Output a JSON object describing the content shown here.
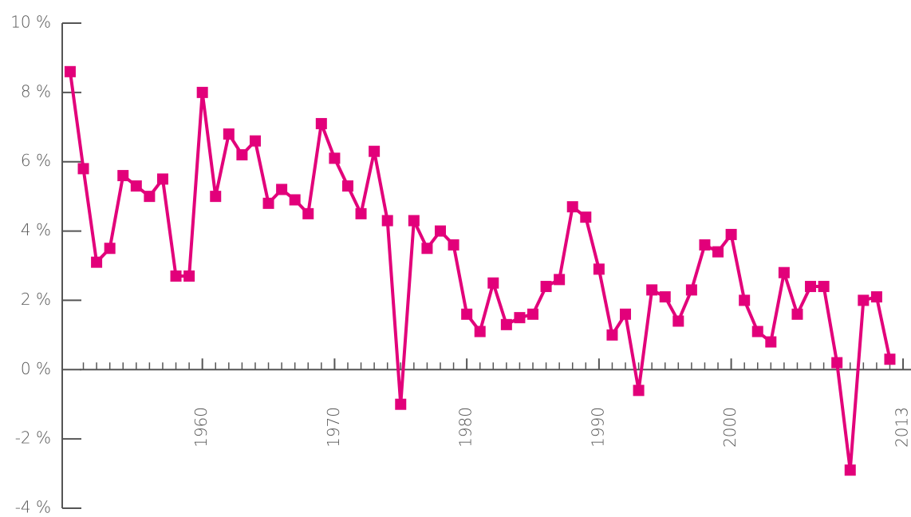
{
  "chart_data": {
    "type": "line",
    "x": [
      1950,
      1951,
      1952,
      1953,
      1954,
      1955,
      1956,
      1957,
      1958,
      1959,
      1960,
      1961,
      1962,
      1963,
      1964,
      1965,
      1966,
      1967,
      1968,
      1969,
      1970,
      1971,
      1972,
      1973,
      1974,
      1975,
      1976,
      1977,
      1978,
      1979,
      1980,
      1981,
      1982,
      1983,
      1984,
      1985,
      1986,
      1987,
      1988,
      1989,
      1990,
      1991,
      1992,
      1993,
      1994,
      1995,
      1996,
      1997,
      1998,
      1999,
      2000,
      2001,
      2002,
      2003,
      2004,
      2005,
      2006,
      2007,
      2008,
      2009,
      2010,
      2011,
      2012
    ],
    "values": [
      8.6,
      5.8,
      3.1,
      3.5,
      5.6,
      5.3,
      5.0,
      5.5,
      2.7,
      2.7,
      8.0,
      5.0,
      6.8,
      6.2,
      6.6,
      4.8,
      5.2,
      4.9,
      4.5,
      7.1,
      6.1,
      5.3,
      4.5,
      6.3,
      4.3,
      -1.0,
      4.3,
      3.5,
      4.0,
      3.6,
      1.6,
      1.1,
      2.5,
      1.3,
      1.5,
      1.6,
      2.4,
      2.6,
      4.7,
      4.4,
      2.9,
      1.0,
      1.6,
      -0.6,
      2.3,
      2.1,
      1.4,
      2.3,
      3.6,
      3.4,
      3.9,
      2.0,
      1.1,
      0.8,
      2.8,
      1.6,
      2.4,
      2.4,
      0.2,
      -2.9,
      2.0,
      2.1,
      0.3
    ],
    "color": "#e2007a",
    "xlim": [
      1949.4,
      2013.6
    ],
    "xticks": [
      1960,
      1970,
      1980,
      1990,
      2000,
      2013
    ],
    "ylim": [
      -4,
      10
    ],
    "yticks": [
      {
        "value": -4,
        "label": "-4 %"
      },
      {
        "value": -2,
        "label": "-2 %"
      },
      {
        "value": 0,
        "label": "0 %"
      },
      {
        "value": 2,
        "label": "2 %"
      },
      {
        "value": 4,
        "label": "4 %"
      },
      {
        "value": 6,
        "label": "6 %"
      },
      {
        "value": 8,
        "label": "8 %"
      },
      {
        "value": 10,
        "label": "10 %"
      }
    ]
  }
}
